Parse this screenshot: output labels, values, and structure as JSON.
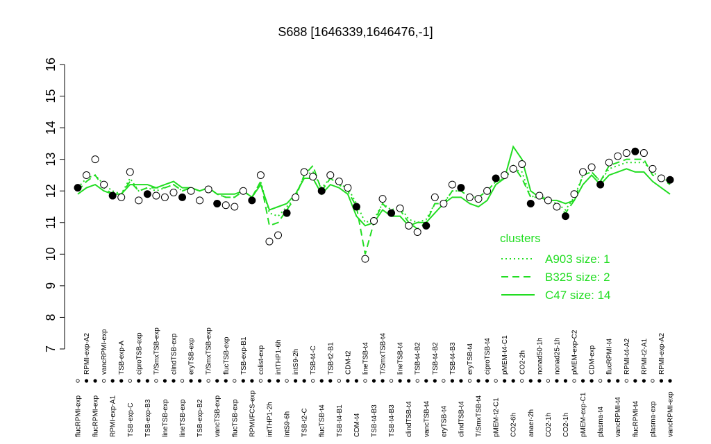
{
  "chart_data": {
    "type": "line",
    "title": "S688 [1646339,1646476,-1]",
    "ylim": [
      7,
      16
    ],
    "yticks": [
      7,
      8,
      9,
      10,
      11,
      12,
      13,
      14,
      15,
      16
    ],
    "categories": [
      "flucRPMI-exp",
      "RPMI-exp-A2",
      "flucRPMI-exp",
      "vancRPMI-exp",
      "RPMI-exp-A1",
      "TSB-exp-A",
      "TSB-exp-C",
      "ciproTSB-exp",
      "TSB-exp-B3",
      "T/SmxTSB-exp",
      "lineTSB-exp",
      "clindTSB-exp",
      "lineTSB-exp",
      "eryTSB-exp",
      "TSB-exp-B2",
      "T/SmxTSB-exp",
      "vancTSB-exp",
      "flucTSB-exp",
      "flucTSB-exp",
      "TSB-exp-B1",
      "RPMI/FCS-exp",
      "colist-exp",
      "intTHP1-2h",
      "intTHP1-6h",
      "intS9-6h",
      "intS9-2h",
      "TSB-t2-C",
      "TSB-t4-C",
      "flucTSB-t4",
      "TSB-t2-B1",
      "TSB-t4-B1",
      "CDM-t2",
      "CDM-t4",
      "lineTSB-t4",
      "TSB-t4-B3",
      "T/SmxTSB-t4",
      "TSB-t4-B3",
      "lineTSB-t4",
      "clindTSB-t4",
      "TSB-t4-B2",
      "vancTSB-t4",
      "TSB-t4-B2",
      "eryTSB-t4",
      "TSB-t4-B3",
      "clindTSB-t4",
      "eryTSB-t4",
      "T/SmxTSB-t4",
      "ciproTSB-t4",
      "pMEM-t2-C1",
      "pMEM-t4-C1",
      "CO2-6h",
      "CO2-2h",
      "anaer-2h",
      "nonad50-1h",
      "CO2-1h",
      "nonad25-1h",
      "CO2-1h",
      "pMEM-exp-C2",
      "pMEM-exp-C1",
      "CDM-exp",
      "plasma-t4",
      "flucRPMI-t4",
      "vancRPMI-t4",
      "RPMI-t4-A2",
      "flucRPMI-t4",
      "RPMI-t2-A1",
      "plasma-exp",
      "RPMI-exp-A2",
      "vancRPMI-exp"
    ],
    "points": {
      "values": [
        12.1,
        12.5,
        13.0,
        12.2,
        11.85,
        11.8,
        12.6,
        11.7,
        11.9,
        11.85,
        11.8,
        11.95,
        11.8,
        12.0,
        11.7,
        12.05,
        11.6,
        11.55,
        11.5,
        12.0,
        11.7,
        12.5,
        10.4,
        10.6,
        11.3,
        11.8,
        12.6,
        12.45,
        12.0,
        12.5,
        12.3,
        12.1,
        11.5,
        9.85,
        11.05,
        11.75,
        11.3,
        11.45,
        10.9,
        10.7,
        10.9,
        11.8,
        11.6,
        12.2,
        12.1,
        11.8,
        11.75,
        12.0,
        12.4,
        12.5,
        12.7,
        12.85,
        11.6,
        11.85,
        11.7,
        11.5,
        11.2,
        11.9,
        12.6,
        12.75,
        12.2,
        12.9,
        13.1,
        13.2,
        13.25,
        13.2,
        12.7,
        12.4,
        12.35
      ],
      "color": "#000000"
    },
    "legend_title": "clusters",
    "series": [
      {
        "name": "A903 size: 1",
        "style": "dotted",
        "color": "#22dd22",
        "values": [
          12.1,
          12.4,
          12.5,
          12.2,
          12.0,
          11.9,
          12.4,
          12.0,
          12.1,
          12.0,
          12.1,
          12.2,
          12.0,
          12.1,
          12.0,
          12.1,
          11.9,
          11.8,
          11.8,
          12.0,
          11.8,
          12.3,
          11.3,
          11.2,
          11.5,
          11.8,
          12.5,
          12.6,
          12.1,
          12.4,
          12.2,
          12.1,
          11.6,
          11.0,
          11.1,
          11.6,
          11.4,
          11.5,
          11.1,
          11.0,
          11.1,
          11.6,
          11.6,
          12.0,
          12.0,
          11.8,
          11.8,
          12.0,
          12.3,
          12.4,
          12.7,
          12.6,
          11.8,
          11.9,
          11.7,
          11.6,
          11.4,
          11.8,
          12.5,
          12.6,
          12.3,
          12.7,
          12.8,
          12.9,
          12.9,
          12.9,
          12.6,
          12.4,
          12.3
        ]
      },
      {
        "name": "B325 size: 2",
        "style": "dashed",
        "color": "#22dd22",
        "values": [
          12.0,
          12.3,
          12.5,
          12.1,
          11.9,
          11.9,
          12.3,
          12.0,
          12.1,
          12.1,
          12.1,
          12.2,
          12.0,
          12.1,
          12.0,
          12.1,
          11.9,
          11.8,
          11.8,
          12.0,
          11.8,
          12.3,
          10.9,
          11.0,
          11.4,
          11.8,
          12.5,
          12.8,
          12.0,
          12.4,
          12.2,
          12.0,
          11.5,
          10.0,
          11.0,
          11.6,
          11.3,
          11.4,
          11.0,
          10.8,
          11.0,
          11.6,
          11.6,
          12.0,
          12.0,
          11.8,
          11.8,
          12.0,
          12.3,
          12.4,
          12.8,
          12.4,
          11.8,
          11.8,
          11.7,
          11.5,
          11.3,
          11.7,
          12.5,
          12.6,
          12.3,
          12.8,
          12.9,
          13.0,
          13.0,
          13.0,
          12.5,
          12.4,
          12.2
        ]
      },
      {
        "name": "C47 size: 14",
        "style": "solid",
        "color": "#22dd22",
        "values": [
          11.9,
          12.1,
          12.2,
          12.0,
          11.9,
          11.9,
          12.2,
          12.2,
          12.2,
          12.1,
          12.2,
          12.3,
          12.1,
          12.1,
          12.0,
          12.1,
          11.9,
          11.9,
          11.9,
          12.0,
          11.8,
          12.2,
          11.4,
          11.5,
          11.6,
          11.9,
          12.4,
          12.4,
          11.9,
          12.2,
          12.1,
          11.9,
          11.2,
          10.9,
          11.0,
          11.4,
          11.2,
          11.2,
          10.9,
          11.0,
          11.0,
          11.3,
          11.6,
          11.8,
          11.8,
          11.6,
          11.5,
          11.7,
          12.2,
          12.4,
          13.4,
          13.0,
          12.0,
          11.8,
          11.7,
          11.7,
          11.6,
          11.7,
          12.2,
          12.5,
          12.2,
          12.5,
          12.6,
          12.7,
          12.6,
          12.6,
          12.3,
          12.1,
          11.9
        ]
      }
    ]
  }
}
